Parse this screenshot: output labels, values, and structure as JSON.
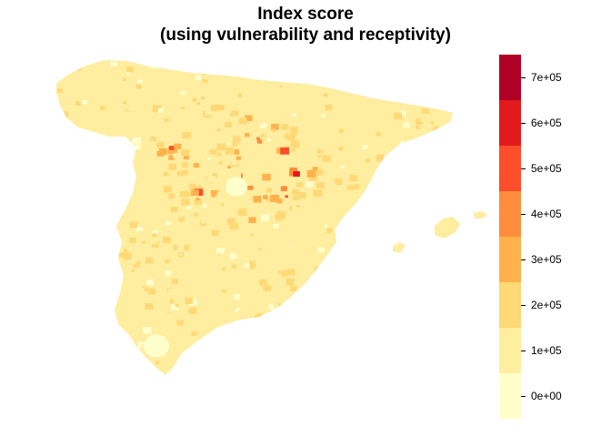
{
  "title_line1": "Index score",
  "title_line2": "(using vulnerability and receptivity)",
  "legend": {
    "bins": [
      {
        "from": 0,
        "to": 100000,
        "color": "#FFFFCC"
      },
      {
        "from": 100000,
        "to": 200000,
        "color": "#FFEDA0"
      },
      {
        "from": 200000,
        "to": 300000,
        "color": "#FED976"
      },
      {
        "from": 300000,
        "to": 400000,
        "color": "#FEB24C"
      },
      {
        "from": 400000,
        "to": 500000,
        "color": "#FD8D3C"
      },
      {
        "from": 500000,
        "to": 600000,
        "color": "#FC4E2A"
      },
      {
        "from": 600000,
        "to": 700000,
        "color": "#E31A1C"
      },
      {
        "from": 700000,
        "to": 800000,
        "color": "#B10026"
      }
    ],
    "labels": [
      "0e+00",
      "1e+05",
      "2e+05",
      "3e+05",
      "4e+05",
      "5e+05",
      "6e+05",
      "7e+05"
    ]
  },
  "map": {
    "region": "Spain",
    "base_color": "#FFEDA0"
  }
}
